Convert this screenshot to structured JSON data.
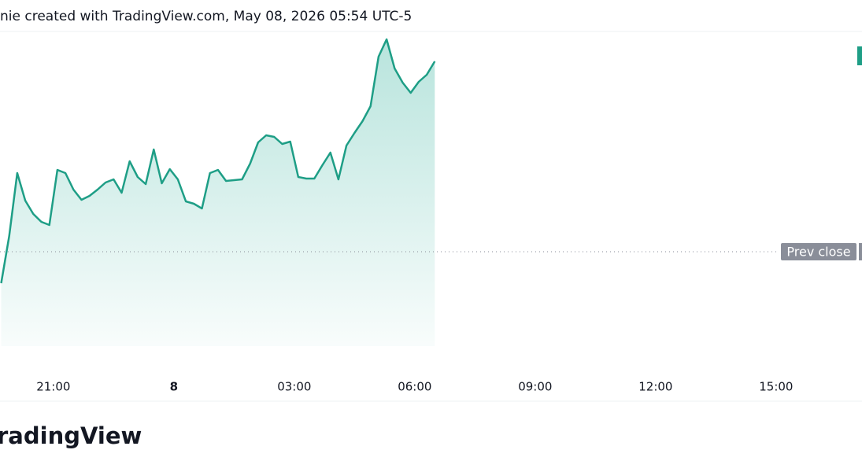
{
  "chart_data": {
    "type": "line",
    "title": "nie created with TradingView.com, May 08, 2026 05:54 UTC-5",
    "brand": "radingView",
    "color": "#1e9e86",
    "x": [
      -4.3,
      -4.1,
      -3.9,
      -3.7,
      -3.5,
      -3.3,
      -3.1,
      -2.9,
      -2.7,
      -2.5,
      -2.3,
      -2.1,
      -1.9,
      -1.7,
      -1.5,
      -1.3,
      -1.1,
      -0.9,
      -0.7,
      -0.5,
      -0.3,
      -0.1,
      0.1,
      0.3,
      0.5,
      0.7,
      0.9,
      1.1,
      1.3,
      1.5,
      1.7,
      1.9,
      2.1,
      2.3,
      2.5,
      2.7,
      2.9,
      3.1,
      3.3,
      3.5,
      3.7,
      3.9,
      4.1,
      4.3,
      4.5,
      4.7,
      4.9,
      5.1,
      5.3,
      5.5,
      5.7,
      5.9,
      6.1,
      6.3,
      6.5
    ],
    "values": [
      -40,
      20,
      100,
      65,
      48,
      38,
      34,
      104,
      100,
      79,
      66,
      71,
      79,
      88,
      92,
      75,
      115,
      95,
      86,
      130,
      87,
      105,
      92,
      64,
      61,
      55,
      100,
      104,
      90,
      91,
      92,
      112,
      139,
      148,
      146,
      137,
      140,
      95,
      93,
      93,
      110,
      126,
      92,
      135,
      151,
      166,
      185,
      248,
      270,
      233,
      215,
      202,
      216,
      225,
      242
    ],
    "xlim": [
      -4.33,
      17.14
    ],
    "xticks": [
      {
        "value": -3,
        "label": "21:00"
      },
      {
        "value": 0,
        "label": "8"
      },
      {
        "value": 3,
        "label": "03:00"
      },
      {
        "value": 6,
        "label": "06:00"
      },
      {
        "value": 9,
        "label": "09:00"
      },
      {
        "value": 12,
        "label": "12:00"
      },
      {
        "value": 15,
        "label": "15:00"
      }
    ],
    "ylim": [
      -120,
      280
    ],
    "prev_close": {
      "value": 0,
      "label": "Prev close"
    }
  }
}
